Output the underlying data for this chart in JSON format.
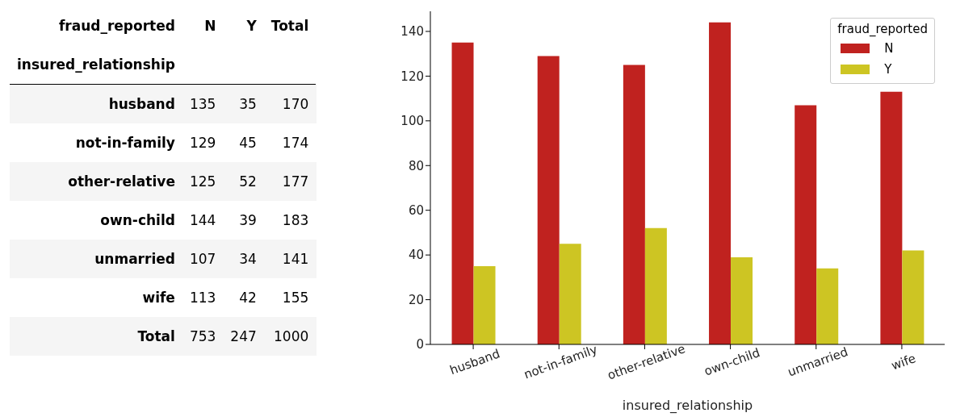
{
  "chart_data": [
    {
      "type": "other",
      "legend_title": "fraud_reported",
      "ylabel": "insured_relationship",
      "categories": [
        "husband",
        "not-in-family",
        "other-relative",
        "own-child",
        "unmarried",
        "wife",
        "Total"
      ],
      "series": [
        {
          "name": "N",
          "values": [
            135,
            129,
            125,
            144,
            107,
            113,
            753
          ]
        },
        {
          "name": "Y",
          "values": [
            35,
            45,
            52,
            39,
            34,
            42,
            247
          ]
        },
        {
          "name": "Total",
          "values": [
            170,
            174,
            177,
            183,
            141,
            155,
            1000
          ]
        }
      ],
      "data_labels": true
    },
    {
      "type": "bar",
      "xlabel": "insured_relationship",
      "legend_title": "fraud_reported",
      "categories": [
        "husband",
        "not-in-family",
        "other-relative",
        "own-child",
        "unmarried",
        "wife"
      ],
      "series": [
        {
          "name": "N",
          "color": "#c0221f",
          "values": [
            135,
            129,
            125,
            144,
            107,
            113
          ]
        },
        {
          "name": "Y",
          "color": "#cdc523",
          "values": [
            35,
            45,
            52,
            39,
            34,
            42
          ]
        }
      ],
      "ylim": [
        0,
        149
      ],
      "yticks": [
        0,
        20,
        40,
        60,
        80,
        100,
        120,
        140
      ],
      "grid": false,
      "legend": "top right"
    }
  ]
}
